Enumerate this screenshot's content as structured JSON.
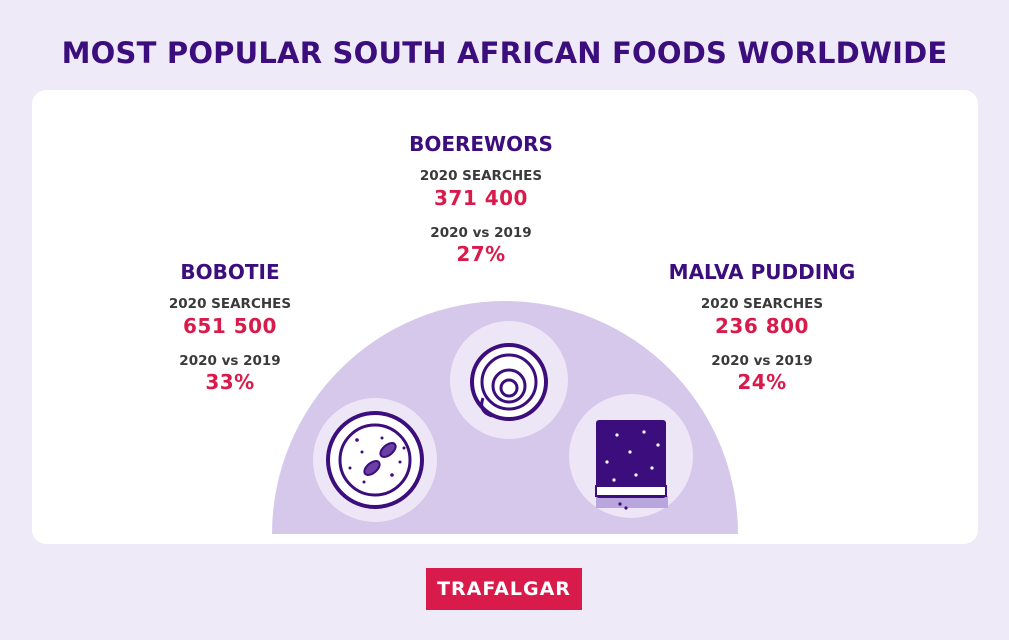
{
  "title": "MOST POPULAR SOUTH AFRICAN FOODS WORLDWIDE",
  "foods": [
    {
      "name": "BOBOTIE",
      "searches_label": "2020 SEARCHES",
      "searches": "651 500",
      "change_label": "2020 vs 2019",
      "change": "33%",
      "icon": "bobotie-plate-icon"
    },
    {
      "name": "BOEREWORS",
      "searches_label": "2020 SEARCHES",
      "searches": "371 400",
      "change_label": "2020 vs 2019",
      "change": "27%",
      "icon": "boerewors-sausage-icon"
    },
    {
      "name": "MALVA PUDDING",
      "searches_label": "2020 SEARCHES",
      "searches": "236 800",
      "change_label": "2020 vs 2019",
      "change": "24%",
      "icon": "malva-pudding-icon"
    }
  ],
  "brand": "TRAFALGAR",
  "colors": {
    "title": "#3c0d7c",
    "value": "#d81b4a",
    "dome": "#d5c8ea",
    "background": "#efeaf8"
  }
}
